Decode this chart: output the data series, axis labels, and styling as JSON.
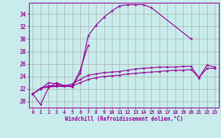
{
  "xlabel": "Windchill (Refroidissement éolien,°C)",
  "background_color": "#c8ecec",
  "line_color": "#990099",
  "grid_color": "#aaaaaa",
  "xlim": [
    -0.5,
    23.5
  ],
  "ylim": [
    19.0,
    35.8
  ],
  "xticks": [
    0,
    1,
    2,
    3,
    4,
    5,
    6,
    7,
    8,
    9,
    10,
    11,
    12,
    13,
    14,
    15,
    16,
    17,
    18,
    19,
    20,
    21,
    22,
    23
  ],
  "yticks": [
    20,
    22,
    24,
    26,
    28,
    30,
    32,
    34
  ],
  "series": [
    [
      21.2,
      19.5,
      22.2,
      23.0,
      22.5,
      22.3,
      24.5,
      30.5,
      32.2,
      33.5,
      34.5,
      35.3,
      35.5,
      35.5,
      35.5,
      35.0,
      null,
      null,
      null,
      null,
      30.0,
      null,
      null,
      null
    ],
    [
      21.2,
      22.0,
      23.0,
      22.8,
      22.5,
      22.5,
      25.0,
      29.0,
      null,
      null,
      null,
      null,
      null,
      null,
      null,
      null,
      null,
      null,
      null,
      null,
      null,
      null,
      null,
      null
    ],
    [
      21.2,
      22.1,
      22.5,
      22.5,
      22.5,
      22.8,
      23.5,
      24.2,
      24.4,
      24.6,
      24.7,
      24.8,
      25.0,
      25.2,
      25.3,
      25.4,
      25.5,
      25.5,
      25.5,
      25.6,
      25.6,
      23.8,
      25.8,
      25.5
    ],
    [
      21.2,
      22.1,
      22.3,
      22.4,
      22.4,
      22.5,
      23.0,
      23.5,
      23.8,
      24.0,
      24.1,
      24.2,
      24.4,
      24.5,
      24.6,
      24.7,
      24.8,
      24.9,
      25.0,
      25.0,
      25.1,
      23.8,
      25.3,
      25.3
    ]
  ]
}
